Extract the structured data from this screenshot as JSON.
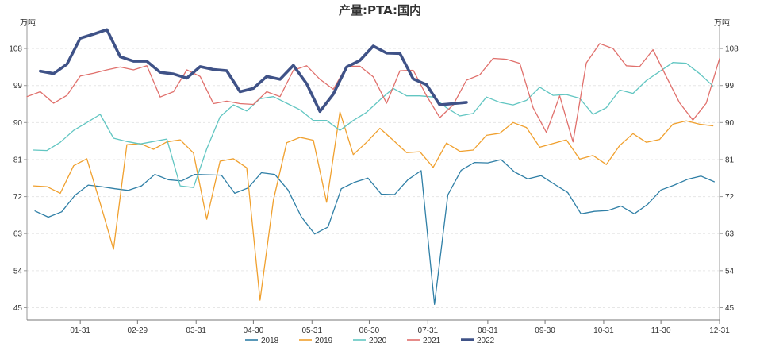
{
  "chart_data": {
    "type": "line",
    "title": "产量:PTA:国内",
    "ylabel_left": "万吨",
    "ylabel_right": "万吨",
    "ylim": [
      42,
      114
    ],
    "yticks": [
      45,
      54,
      63,
      72,
      81,
      90,
      99,
      108
    ],
    "x_domain": [
      0,
      52
    ],
    "x_ticks": [
      {
        "label": "01-31",
        "pos": 4
      },
      {
        "label": "02-29",
        "pos": 8.3
      },
      {
        "label": "03-31",
        "pos": 12.7
      },
      {
        "label": "04-30",
        "pos": 17
      },
      {
        "label": "05-31",
        "pos": 21.4
      },
      {
        "label": "06-30",
        "pos": 25.7
      },
      {
        "label": "07-31",
        "pos": 30.1
      },
      {
        "label": "08-31",
        "pos": 34.6
      },
      {
        "label": "09-30",
        "pos": 38.9
      },
      {
        "label": "10-31",
        "pos": 43.3
      },
      {
        "label": "11-30",
        "pos": 47.6
      },
      {
        "label": "12-31",
        "pos": 52
      }
    ],
    "grid": "horizontal-dashed",
    "legend_position": "bottom",
    "series": [
      {
        "name": "2018",
        "color": "#2f7fa6",
        "width": 1.3,
        "start": 0.6,
        "values": [
          68.5,
          67,
          68.3,
          72.3,
          74.8,
          74.4,
          73.9,
          73.5,
          74.6,
          77.4,
          76.1,
          75.8,
          77.4,
          77.3,
          77.2,
          72.8,
          74.1,
          77.8,
          77.4,
          73.6,
          67.1,
          62.9,
          64.6,
          73.9,
          75.5,
          76.5,
          72.6,
          72.5,
          76.1,
          78.3,
          45.8,
          72.4,
          78.4,
          80.3,
          80.2,
          81,
          78,
          76.3,
          77.1,
          75,
          73,
          67.8,
          68.4,
          68.6,
          69.7,
          67.8,
          70.1,
          73.6,
          74.8,
          76.2,
          77,
          75.6
        ]
      },
      {
        "name": "2019",
        "color": "#f0a02e",
        "width": 1.3,
        "start": 0.5,
        "values": [
          74.6,
          74.4,
          72.8,
          79.5,
          81.2,
          70.4,
          59.2,
          84.6,
          84.9,
          83.5,
          85.3,
          85.8,
          82.6,
          66.5,
          80.6,
          81.2,
          79,
          46.8,
          71.1,
          85.1,
          86.4,
          85.7,
          70.6,
          92.6,
          82.2,
          85.2,
          88.6,
          85.7,
          82.7,
          82.9,
          79.1,
          85,
          83,
          83.3,
          86.9,
          87.4,
          90,
          88.8,
          84,
          84.9,
          85.8,
          81.1,
          82,
          79.8,
          84.4,
          87.3,
          85.2,
          85.9,
          89.6,
          90.4,
          89.6,
          89.2
        ]
      },
      {
        "name": "2020",
        "color": "#62c6c2",
        "width": 1.3,
        "start": 0.5,
        "values": [
          83.3,
          83.2,
          85.2,
          88.1,
          90,
          92,
          86.2,
          85.4,
          84.8,
          85.4,
          86,
          74.6,
          74.2,
          83.6,
          91.4,
          94.3,
          92.8,
          95.8,
          96.3,
          94.7,
          93.1,
          90.5,
          90.5,
          88.1,
          90.5,
          92.5,
          95.5,
          98.3,
          96.5,
          96.5,
          96.2,
          93.6,
          91.6,
          92.2,
          96.2,
          94.9,
          94.3,
          95.4,
          98.6,
          96.6,
          96.8,
          95.9,
          92,
          93.6,
          97.9,
          97.1,
          100.2,
          102.4,
          104.6,
          104.4,
          101.9,
          98.9
        ]
      },
      {
        "name": "2021",
        "color": "#e0706c",
        "width": 1.3,
        "start": 0,
        "values": [
          96.3,
          97.5,
          94.7,
          96.6,
          101.3,
          102,
          102.8,
          103.5,
          102.8,
          103.8,
          96.2,
          97.5,
          102.8,
          101.2,
          94.6,
          95.2,
          94.6,
          94.4,
          97.5,
          96.3,
          102.7,
          103.8,
          100.5,
          98.1,
          103.7,
          103.7,
          101.1,
          94.7,
          102.6,
          102.7,
          96.5,
          91.2,
          94.3,
          100.3,
          101.6,
          105.6,
          105.4,
          104.4,
          93.6,
          87.6,
          96.5,
          85.3,
          104.5,
          109.2,
          108,
          103.8,
          103.6,
          107.7,
          101.2,
          94.8,
          90.6,
          94.7,
          105.6
        ]
      },
      {
        "name": "2022",
        "color": "#3f5287",
        "width": 3.6,
        "start": 1,
        "values": [
          102.5,
          101.9,
          104.2,
          110.5,
          111.5,
          112.6,
          106,
          104.9,
          104.9,
          102.2,
          101.8,
          100.8,
          103.6,
          102.9,
          102.6,
          97.5,
          98.3,
          101.2,
          100.5,
          103.9,
          99.4,
          92.7,
          96.9,
          103.5,
          105.1,
          108.6,
          106.9,
          106.8,
          100.6,
          99.2,
          94.3,
          94.6,
          94.9
        ]
      }
    ]
  }
}
